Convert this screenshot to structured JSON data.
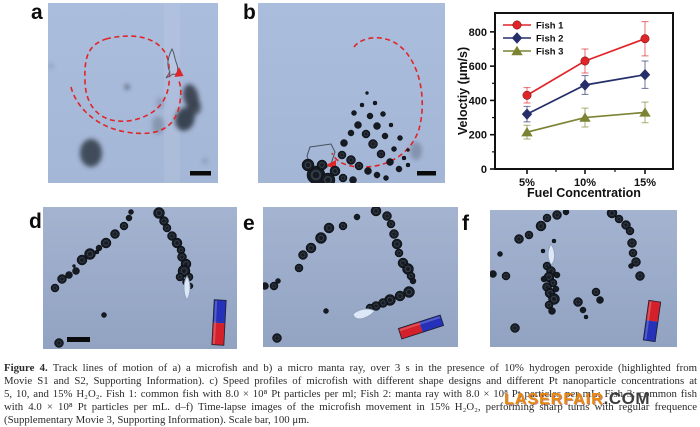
{
  "panels": {
    "a": {
      "label": "a"
    },
    "b": {
      "label": "b"
    },
    "c": {
      "label": "c"
    },
    "d": {
      "label": "d"
    },
    "e": {
      "label": "e"
    },
    "f": {
      "label": "f"
    }
  },
  "chart_data": {
    "type": "line",
    "title": "",
    "xlabel": "Fuel Concentration",
    "ylabel": "Veloctiy (μm/s)",
    "categories": [
      "5%",
      "10%",
      "15%"
    ],
    "ylim": [
      0,
      910
    ],
    "yticks": [
      0,
      200,
      400,
      600,
      800
    ],
    "grid": false,
    "legend_position": "top-left",
    "series": [
      {
        "name": "Fish 1",
        "marker": "circle",
        "color": "#e02529",
        "values": [
          430,
          630,
          760
        ],
        "errors": [
          45,
          70,
          100
        ]
      },
      {
        "name": "Fish 2",
        "marker": "diamond",
        "color": "#272f6b",
        "values": [
          320,
          490,
          550
        ],
        "errors": [
          45,
          55,
          80
        ]
      },
      {
        "name": "Fish 3",
        "marker": "triangle",
        "color": "#7c8433",
        "values": [
          215,
          300,
          330
        ],
        "errors": [
          40,
          55,
          60
        ]
      }
    ]
  },
  "caption": {
    "figure_label": "Figure 4.",
    "lines": [
      " Track lines of motion of a) a microfish and b) a micro manta ray, over 3 s in the presence of 10% hydrogen peroxide (highlighted from",
      "Movie S1 and S2, Supporting Information). c) Speed profiles of microfish with different shape designs and different Pt nanoparticle concentrations at",
      "5, 10, and 15% H₂O₂. Fish 1: common fish with 8.0 × 10⁸ Pt particles per ml; Fish 2: manta ray with 8.0 × 10⁸ Pt particles per mL; Fish 3: common fish",
      "with 4.0 × 10⁸ Pt particles per mL. d–f) Time-lapse images of the microfish movement in 15% H₂O₂, performing sharp turns with regular frequence",
      "(Supplementary Movie 3, Supporting Information). Scale bar, 100 μm."
    ]
  },
  "watermark": {
    "brand": "LASERFAIR",
    "suffix": ".COM",
    "brand_color": "#e8890f",
    "suffix_color": "#3e3e3e"
  },
  "colors": {
    "micrograph_bg_light": "#a9bbdb",
    "micrograph_bg_dark": "#9dafce",
    "track_red": "#e02529",
    "magnet_red": "#d3202a",
    "magnet_blue": "#2531b8",
    "scale_bar": "#0a0a0a"
  }
}
